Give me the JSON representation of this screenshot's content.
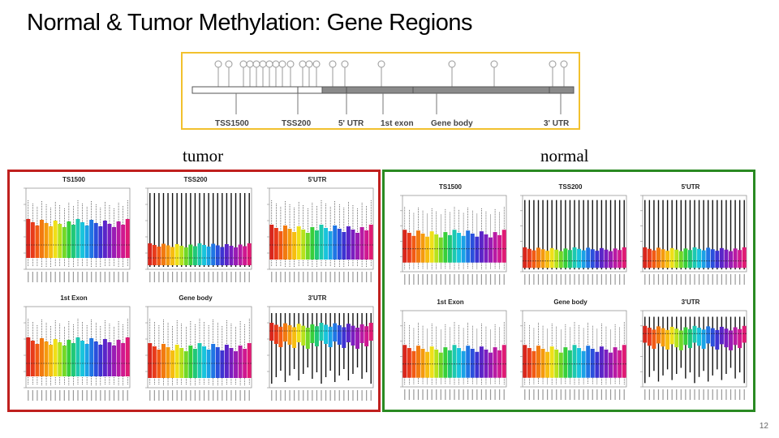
{
  "slide": {
    "title": "Normal & Tumor Methylation: Gene Regions",
    "page_number": "12"
  },
  "gene_map": {
    "region_labels": [
      "TSS1500",
      "TSS200",
      "5' UTR",
      "1st exon",
      "Gene body",
      "3' UTR"
    ]
  },
  "groups": {
    "tumor_label": "tumor",
    "normal_label": "normal"
  },
  "panels": {
    "tumor": [
      {
        "title": "TS1500",
        "pattern": "bars-high"
      },
      {
        "title": "TSS200",
        "pattern": "bars-low"
      },
      {
        "title": "5'UTR",
        "pattern": "bars-mid"
      },
      {
        "title": "1st Exon",
        "pattern": "bars-high"
      },
      {
        "title": "Gene body",
        "pattern": "bars-mid"
      },
      {
        "title": "3'UTR",
        "pattern": "bars-top"
      }
    ],
    "normal": [
      {
        "title": "TS1500",
        "pattern": "bars-mid"
      },
      {
        "title": "TSS200",
        "pattern": "bars-low"
      },
      {
        "title": "5'UTR",
        "pattern": "bars-low"
      },
      {
        "title": "1st Exon",
        "pattern": "bars-mid"
      },
      {
        "title": "Gene body",
        "pattern": "bars-mid"
      },
      {
        "title": "3'UTR",
        "pattern": "bars-top"
      }
    ]
  },
  "colors": {
    "tumor_border": "#c0201e",
    "normal_border": "#2a8a22",
    "map_border": "#f2c12e"
  }
}
